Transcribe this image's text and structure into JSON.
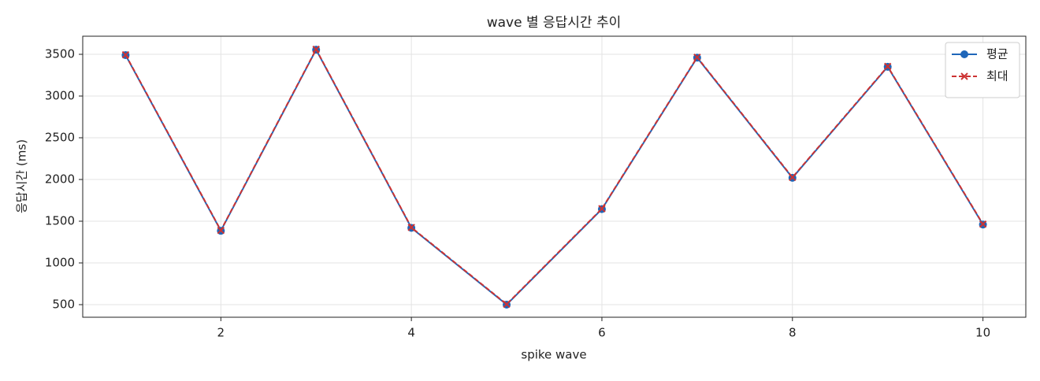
{
  "chart_data": {
    "type": "line",
    "title": "wave 별 응답시간 추이",
    "x_label": "spike wave",
    "y_label": "응답시간 (ms)",
    "x": [
      1,
      2,
      3,
      4,
      5,
      6,
      7,
      8,
      9,
      10
    ],
    "series": [
      {
        "name": "평균",
        "color": "#1f66b9",
        "marker": "circle",
        "dash": false,
        "values": [
          3490,
          1385,
          3555,
          1420,
          500,
          1645,
          3460,
          2020,
          3350,
          1460
        ]
      },
      {
        "name": "최대",
        "color": "#cc3333",
        "marker": "x",
        "dash": true,
        "values": [
          3495,
          1390,
          3560,
          1425,
          505,
          1650,
          3465,
          2025,
          3355,
          1465
        ]
      }
    ],
    "xlim": [
      0.55,
      10.45
    ],
    "ylim": [
      349,
      3717
    ],
    "xticks": [
      2,
      4,
      6,
      8,
      10
    ],
    "yticks": [
      500,
      1000,
      1500,
      2000,
      2500,
      3000,
      3500
    ],
    "grid": true,
    "legend": "upper right"
  }
}
